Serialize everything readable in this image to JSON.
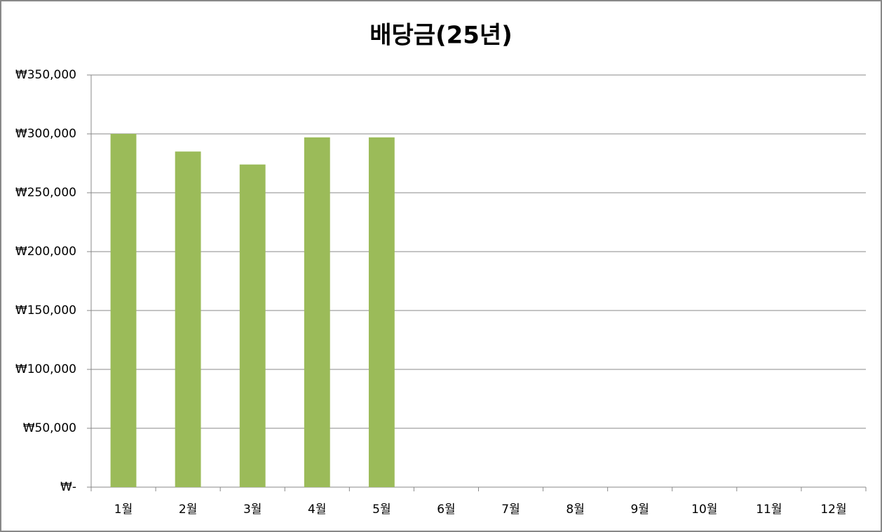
{
  "chart_data": {
    "type": "bar",
    "title": "배당금(25년)",
    "categories": [
      "1월",
      "2월",
      "3월",
      "4월",
      "5월",
      "6월",
      "7월",
      "8월",
      "9월",
      "10월",
      "11월",
      "12월"
    ],
    "values": [
      300000,
      285000,
      274000,
      297000,
      297000,
      null,
      null,
      null,
      null,
      null,
      null,
      null
    ],
    "color": "#9bbb59",
    "ylim": [
      0,
      350000
    ],
    "yticks": [
      {
        "value": 0,
        "label": "₩-"
      },
      {
        "value": 50000,
        "label": "₩50,000"
      },
      {
        "value": 100000,
        "label": "₩100,000"
      },
      {
        "value": 150000,
        "label": "₩150,000"
      },
      {
        "value": 200000,
        "label": "₩200,000"
      },
      {
        "value": 250000,
        "label": "₩250,000"
      },
      {
        "value": 300000,
        "label": "₩300,000"
      },
      {
        "value": 350000,
        "label": "₩350,000"
      }
    ],
    "grid": true
  }
}
